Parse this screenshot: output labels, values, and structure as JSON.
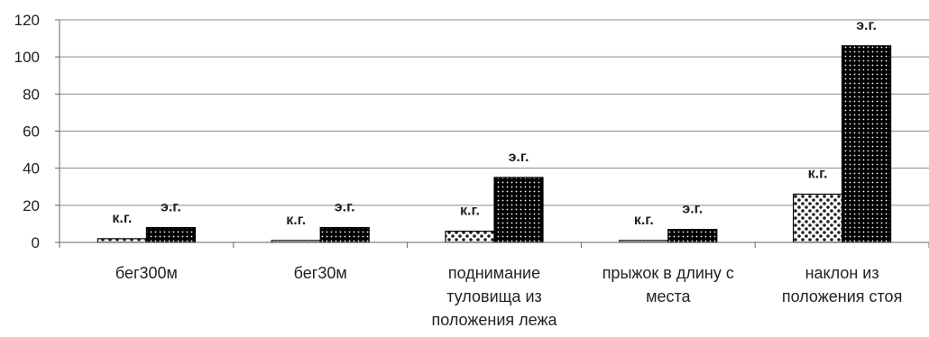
{
  "chart_data": {
    "type": "bar",
    "ylim": [
      0,
      120
    ],
    "yticks": [
      0,
      20,
      40,
      60,
      80,
      100,
      120
    ],
    "grid": true,
    "legend": "none",
    "categories": [
      [
        "бег300м"
      ],
      [
        "бег30м"
      ],
      [
        "поднимание",
        "туловища из",
        "положения лежа"
      ],
      [
        "прыжок в длину с",
        "места"
      ],
      [
        "наклон из",
        "положения стоя"
      ]
    ],
    "series": [
      {
        "name": "к.г.",
        "values": [
          2,
          1,
          6,
          1,
          26
        ],
        "pattern": "kg"
      },
      {
        "name": "э.г.",
        "values": [
          8,
          8,
          35,
          7,
          106
        ],
        "pattern": "eg"
      }
    ]
  }
}
